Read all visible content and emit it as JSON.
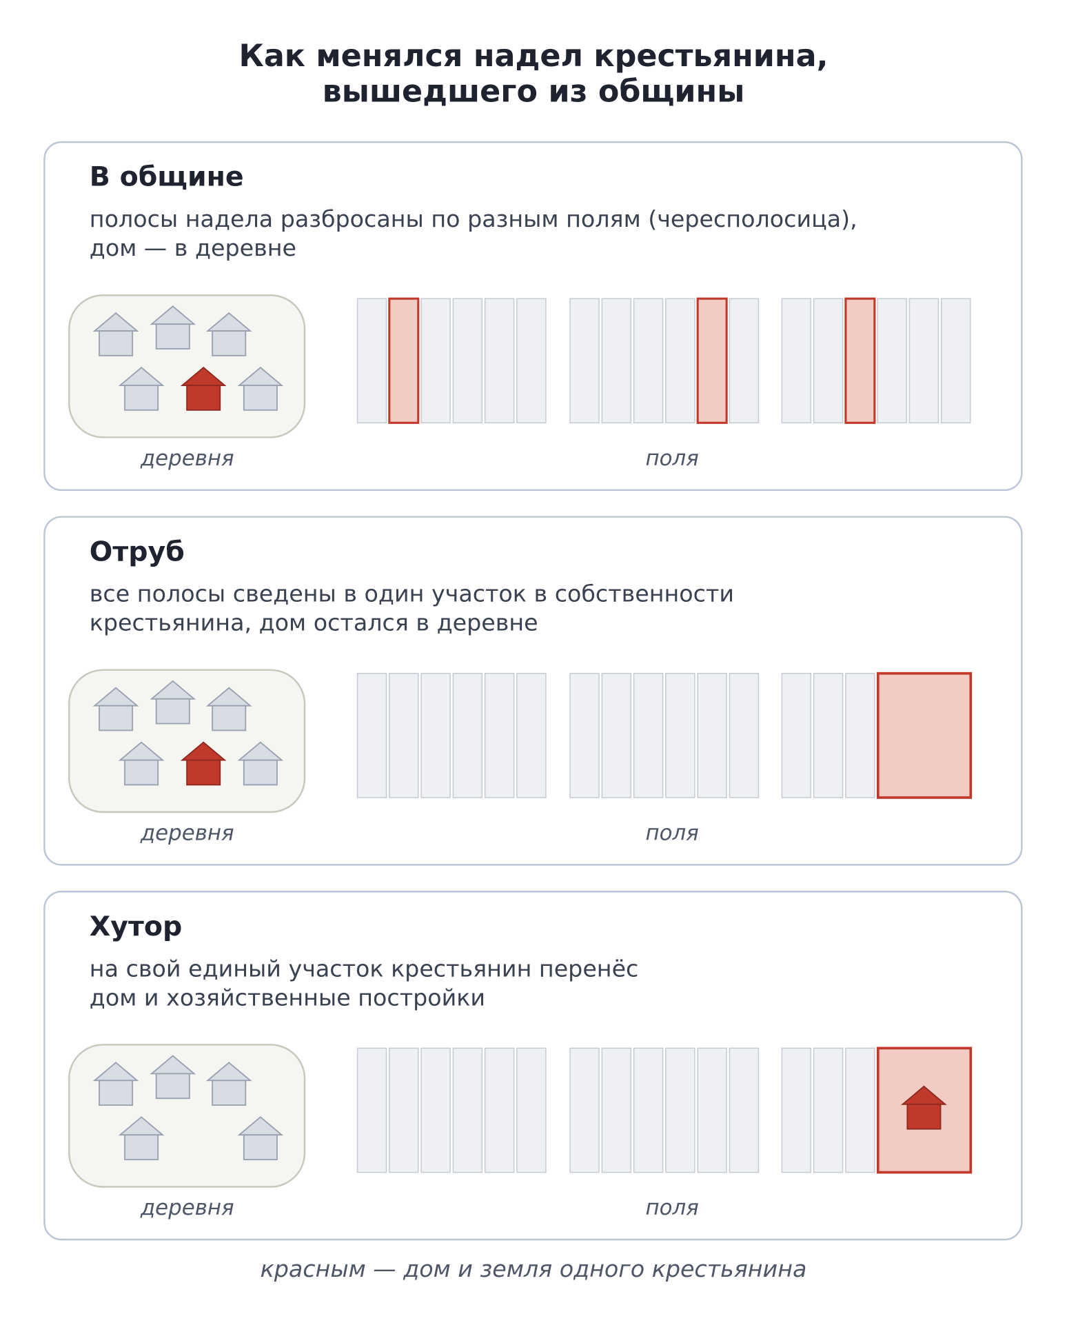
{
  "title": [
    "Как менялся надел крестьянина,",
    "вышедшего из общины"
  ],
  "panels": [
    {
      "heading": "В общине",
      "description": [
        "полосы надела разбросаны по разным полям (чересполосица),",
        "дом — в деревне"
      ],
      "village_label": "деревня",
      "fields_label": "поля"
    },
    {
      "heading": "Отруб",
      "description": [
        "все полосы сведены в один участок в собственности",
        "крестьянина, дом остался в деревне"
      ],
      "village_label": "деревня",
      "fields_label": "поля"
    },
    {
      "heading": "Хутор",
      "description": [
        "на свой единый участок крестьянин перенёс",
        "дом и хозяйственные постройки"
      ],
      "village_label": "деревня",
      "fields_label": "поля"
    }
  ],
  "footnote": "красным — дом и земля одного крестьянина"
}
